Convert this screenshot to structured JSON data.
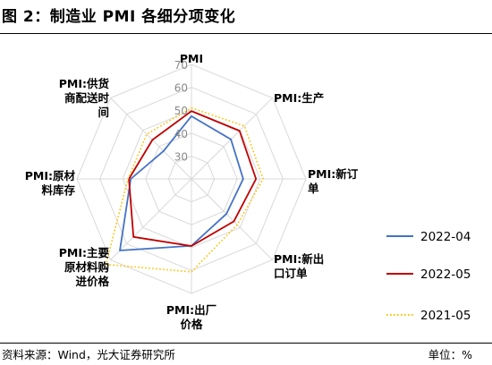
{
  "header": {
    "title": "图 2：制造业 PMI 各细分项变化"
  },
  "footer": {
    "source": "资料来源：Wind，光大证券研究所",
    "unit": "单位：%"
  },
  "chart_data": {
    "type": "radar",
    "axes": [
      [
        "PMI"
      ],
      [
        "PMI:生产"
      ],
      [
        "PMI:新订",
        "单"
      ],
      [
        "PMI:新出",
        "口订单"
      ],
      [
        "PMI:出厂",
        "价格"
      ],
      [
        "PMI:主要",
        "原材料购",
        "进价格"
      ],
      [
        "PMI:原材",
        "料库存"
      ],
      [
        "PMI:供货",
        "商配送时",
        "间"
      ]
    ],
    "rlim": [
      20,
      70
    ],
    "ticks": [
      30,
      40,
      50,
      60,
      70
    ],
    "grid": true,
    "legend_position": "right",
    "series": [
      {
        "name": "2022-04",
        "color": "#4472c4",
        "style": "solid",
        "values": [
          47.4,
          44.4,
          42.6,
          41.6,
          49.2,
          64.2,
          46.5,
          37.2
        ]
      },
      {
        "name": "2022-05",
        "color": "#c00000",
        "style": "solid",
        "values": [
          49.6,
          49.7,
          48.2,
          46.2,
          49.3,
          55.8,
          47.3,
          44.1
        ]
      },
      {
        "name": "2021-05",
        "color": "#ffc000",
        "style": "dotted",
        "values": [
          51.0,
          52.7,
          51.3,
          48.3,
          60.6,
          72.8,
          47.7,
          47.6
        ]
      }
    ]
  }
}
